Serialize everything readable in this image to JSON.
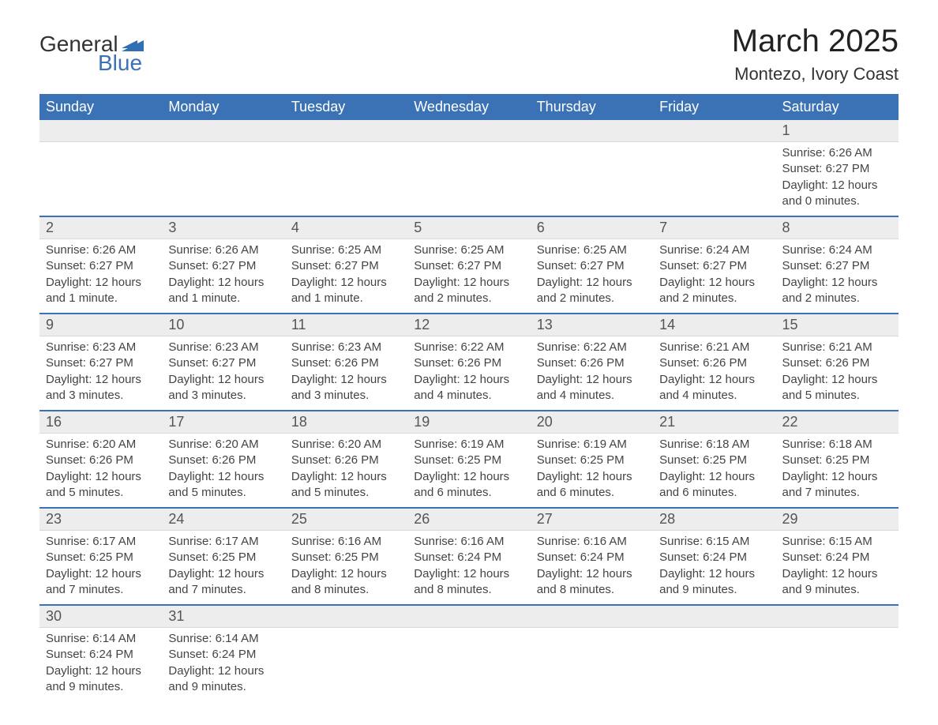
{
  "brand": {
    "word1": "General",
    "word2": "Blue",
    "flag_color": "#2f6fb2"
  },
  "title": "March 2025",
  "location": "Montezo, Ivory Coast",
  "colors": {
    "header_bg": "#3b72b5",
    "header_text": "#ffffff",
    "daynum_bg": "#ededed",
    "row_border": "#3b72b5",
    "text": "#444444"
  },
  "fonts": {
    "title_size_pt": 30,
    "location_size_pt": 16,
    "header_size_pt": 14,
    "daynum_size_pt": 14,
    "body_size_pt": 11
  },
  "layout": {
    "columns": 7,
    "rows": 6,
    "cell_width_ratio": 1
  },
  "weekdays": [
    "Sunday",
    "Monday",
    "Tuesday",
    "Wednesday",
    "Thursday",
    "Friday",
    "Saturday"
  ],
  "weeks": [
    [
      {
        "empty": true
      },
      {
        "empty": true
      },
      {
        "empty": true
      },
      {
        "empty": true
      },
      {
        "empty": true
      },
      {
        "empty": true
      },
      {
        "day": "1",
        "sunrise": "Sunrise: 6:26 AM",
        "sunset": "Sunset: 6:27 PM",
        "daylight1": "Daylight: 12 hours",
        "daylight2": "and 0 minutes."
      }
    ],
    [
      {
        "day": "2",
        "sunrise": "Sunrise: 6:26 AM",
        "sunset": "Sunset: 6:27 PM",
        "daylight1": "Daylight: 12 hours",
        "daylight2": "and 1 minute."
      },
      {
        "day": "3",
        "sunrise": "Sunrise: 6:26 AM",
        "sunset": "Sunset: 6:27 PM",
        "daylight1": "Daylight: 12 hours",
        "daylight2": "and 1 minute."
      },
      {
        "day": "4",
        "sunrise": "Sunrise: 6:25 AM",
        "sunset": "Sunset: 6:27 PM",
        "daylight1": "Daylight: 12 hours",
        "daylight2": "and 1 minute."
      },
      {
        "day": "5",
        "sunrise": "Sunrise: 6:25 AM",
        "sunset": "Sunset: 6:27 PM",
        "daylight1": "Daylight: 12 hours",
        "daylight2": "and 2 minutes."
      },
      {
        "day": "6",
        "sunrise": "Sunrise: 6:25 AM",
        "sunset": "Sunset: 6:27 PM",
        "daylight1": "Daylight: 12 hours",
        "daylight2": "and 2 minutes."
      },
      {
        "day": "7",
        "sunrise": "Sunrise: 6:24 AM",
        "sunset": "Sunset: 6:27 PM",
        "daylight1": "Daylight: 12 hours",
        "daylight2": "and 2 minutes."
      },
      {
        "day": "8",
        "sunrise": "Sunrise: 6:24 AM",
        "sunset": "Sunset: 6:27 PM",
        "daylight1": "Daylight: 12 hours",
        "daylight2": "and 2 minutes."
      }
    ],
    [
      {
        "day": "9",
        "sunrise": "Sunrise: 6:23 AM",
        "sunset": "Sunset: 6:27 PM",
        "daylight1": "Daylight: 12 hours",
        "daylight2": "and 3 minutes."
      },
      {
        "day": "10",
        "sunrise": "Sunrise: 6:23 AM",
        "sunset": "Sunset: 6:27 PM",
        "daylight1": "Daylight: 12 hours",
        "daylight2": "and 3 minutes."
      },
      {
        "day": "11",
        "sunrise": "Sunrise: 6:23 AM",
        "sunset": "Sunset: 6:26 PM",
        "daylight1": "Daylight: 12 hours",
        "daylight2": "and 3 minutes."
      },
      {
        "day": "12",
        "sunrise": "Sunrise: 6:22 AM",
        "sunset": "Sunset: 6:26 PM",
        "daylight1": "Daylight: 12 hours",
        "daylight2": "and 4 minutes."
      },
      {
        "day": "13",
        "sunrise": "Sunrise: 6:22 AM",
        "sunset": "Sunset: 6:26 PM",
        "daylight1": "Daylight: 12 hours",
        "daylight2": "and 4 minutes."
      },
      {
        "day": "14",
        "sunrise": "Sunrise: 6:21 AM",
        "sunset": "Sunset: 6:26 PM",
        "daylight1": "Daylight: 12 hours",
        "daylight2": "and 4 minutes."
      },
      {
        "day": "15",
        "sunrise": "Sunrise: 6:21 AM",
        "sunset": "Sunset: 6:26 PM",
        "daylight1": "Daylight: 12 hours",
        "daylight2": "and 5 minutes."
      }
    ],
    [
      {
        "day": "16",
        "sunrise": "Sunrise: 6:20 AM",
        "sunset": "Sunset: 6:26 PM",
        "daylight1": "Daylight: 12 hours",
        "daylight2": "and 5 minutes."
      },
      {
        "day": "17",
        "sunrise": "Sunrise: 6:20 AM",
        "sunset": "Sunset: 6:26 PM",
        "daylight1": "Daylight: 12 hours",
        "daylight2": "and 5 minutes."
      },
      {
        "day": "18",
        "sunrise": "Sunrise: 6:20 AM",
        "sunset": "Sunset: 6:26 PM",
        "daylight1": "Daylight: 12 hours",
        "daylight2": "and 5 minutes."
      },
      {
        "day": "19",
        "sunrise": "Sunrise: 6:19 AM",
        "sunset": "Sunset: 6:25 PM",
        "daylight1": "Daylight: 12 hours",
        "daylight2": "and 6 minutes."
      },
      {
        "day": "20",
        "sunrise": "Sunrise: 6:19 AM",
        "sunset": "Sunset: 6:25 PM",
        "daylight1": "Daylight: 12 hours",
        "daylight2": "and 6 minutes."
      },
      {
        "day": "21",
        "sunrise": "Sunrise: 6:18 AM",
        "sunset": "Sunset: 6:25 PM",
        "daylight1": "Daylight: 12 hours",
        "daylight2": "and 6 minutes."
      },
      {
        "day": "22",
        "sunrise": "Sunrise: 6:18 AM",
        "sunset": "Sunset: 6:25 PM",
        "daylight1": "Daylight: 12 hours",
        "daylight2": "and 7 minutes."
      }
    ],
    [
      {
        "day": "23",
        "sunrise": "Sunrise: 6:17 AM",
        "sunset": "Sunset: 6:25 PM",
        "daylight1": "Daylight: 12 hours",
        "daylight2": "and 7 minutes."
      },
      {
        "day": "24",
        "sunrise": "Sunrise: 6:17 AM",
        "sunset": "Sunset: 6:25 PM",
        "daylight1": "Daylight: 12 hours",
        "daylight2": "and 7 minutes."
      },
      {
        "day": "25",
        "sunrise": "Sunrise: 6:16 AM",
        "sunset": "Sunset: 6:25 PM",
        "daylight1": "Daylight: 12 hours",
        "daylight2": "and 8 minutes."
      },
      {
        "day": "26",
        "sunrise": "Sunrise: 6:16 AM",
        "sunset": "Sunset: 6:24 PM",
        "daylight1": "Daylight: 12 hours",
        "daylight2": "and 8 minutes."
      },
      {
        "day": "27",
        "sunrise": "Sunrise: 6:16 AM",
        "sunset": "Sunset: 6:24 PM",
        "daylight1": "Daylight: 12 hours",
        "daylight2": "and 8 minutes."
      },
      {
        "day": "28",
        "sunrise": "Sunrise: 6:15 AM",
        "sunset": "Sunset: 6:24 PM",
        "daylight1": "Daylight: 12 hours",
        "daylight2": "and 9 minutes."
      },
      {
        "day": "29",
        "sunrise": "Sunrise: 6:15 AM",
        "sunset": "Sunset: 6:24 PM",
        "daylight1": "Daylight: 12 hours",
        "daylight2": "and 9 minutes."
      }
    ],
    [
      {
        "day": "30",
        "sunrise": "Sunrise: 6:14 AM",
        "sunset": "Sunset: 6:24 PM",
        "daylight1": "Daylight: 12 hours",
        "daylight2": "and 9 minutes."
      },
      {
        "day": "31",
        "sunrise": "Sunrise: 6:14 AM",
        "sunset": "Sunset: 6:24 PM",
        "daylight1": "Daylight: 12 hours",
        "daylight2": "and 9 minutes."
      },
      {
        "empty": true
      },
      {
        "empty": true
      },
      {
        "empty": true
      },
      {
        "empty": true
      },
      {
        "empty": true
      }
    ]
  ]
}
